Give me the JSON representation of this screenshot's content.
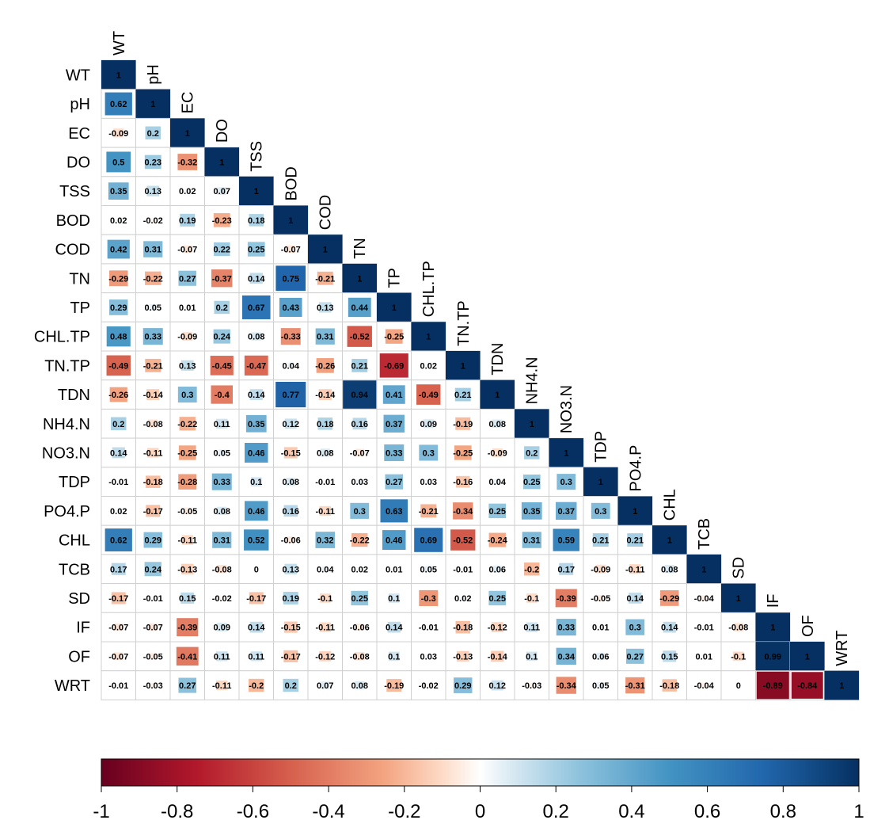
{
  "chart_data": {
    "type": "heatmap",
    "subtype": "lower-triangular correlation matrix",
    "title": "",
    "variables": [
      "WT",
      "pH",
      "EC",
      "DO",
      "TSS",
      "BOD",
      "COD",
      "TN",
      "TP",
      "CHL.TP",
      "TN.TP",
      "TDN",
      "NH4.N",
      "NO3.N",
      "TDP",
      "PO4.P",
      "CHL",
      "TCB",
      "SD",
      "IF",
      "OF",
      "WRT"
    ],
    "rows": [
      {
        "label": "WT",
        "values": [
          1
        ]
      },
      {
        "label": "pH",
        "values": [
          0.62,
          1
        ]
      },
      {
        "label": "EC",
        "values": [
          -0.09,
          0.2,
          1
        ]
      },
      {
        "label": "DO",
        "values": [
          0.5,
          0.23,
          -0.32,
          1
        ]
      },
      {
        "label": "TSS",
        "values": [
          0.35,
          0.13,
          0.02,
          0.07,
          1
        ]
      },
      {
        "label": "BOD",
        "values": [
          0.02,
          -0.02,
          0.19,
          -0.23,
          0.18,
          1
        ]
      },
      {
        "label": "COD",
        "values": [
          0.42,
          0.31,
          -0.07,
          0.22,
          0.25,
          -0.07,
          1
        ]
      },
      {
        "label": "TN",
        "values": [
          -0.29,
          -0.22,
          0.27,
          -0.37,
          0.14,
          0.75,
          -0.21,
          1
        ]
      },
      {
        "label": "TP",
        "values": [
          0.29,
          0.05,
          0.01,
          0.2,
          0.67,
          0.43,
          0.13,
          0.44,
          1
        ]
      },
      {
        "label": "CHL.TP",
        "values": [
          0.48,
          0.33,
          -0.09,
          0.24,
          0.08,
          -0.33,
          0.31,
          -0.52,
          -0.25,
          1
        ]
      },
      {
        "label": "TN.TP",
        "values": [
          -0.49,
          -0.21,
          0.13,
          -0.45,
          -0.47,
          0.04,
          -0.26,
          0.21,
          -0.69,
          0.02,
          1
        ]
      },
      {
        "label": "TDN",
        "values": [
          -0.26,
          -0.14,
          0.3,
          -0.4,
          0.14,
          0.77,
          -0.14,
          0.94,
          0.41,
          -0.49,
          0.21,
          1
        ]
      },
      {
        "label": "NH4.N",
        "values": [
          0.2,
          -0.08,
          -0.22,
          0.11,
          0.35,
          0.12,
          0.18,
          0.16,
          0.37,
          0.09,
          -0.19,
          0.08,
          1
        ]
      },
      {
        "label": "NO3.N",
        "values": [
          0.14,
          -0.11,
          -0.25,
          0.05,
          0.46,
          -0.15,
          0.08,
          -0.07,
          0.33,
          0.3,
          -0.25,
          -0.09,
          0.2,
          1
        ]
      },
      {
        "label": "TDP",
        "values": [
          -0.01,
          -0.18,
          -0.28,
          0.33,
          0.1,
          0.08,
          -0.01,
          0.03,
          0.27,
          0.03,
          -0.16,
          0.04,
          0.25,
          0.3,
          1
        ]
      },
      {
        "label": "PO4.P",
        "values": [
          0.02,
          -0.17,
          -0.05,
          0.08,
          0.46,
          0.16,
          -0.11,
          0.3,
          0.63,
          -0.21,
          -0.34,
          0.25,
          0.35,
          0.37,
          0.3,
          1
        ]
      },
      {
        "label": "CHL",
        "values": [
          0.62,
          0.29,
          -0.11,
          0.31,
          0.52,
          -0.06,
          0.32,
          -0.22,
          0.46,
          0.69,
          -0.52,
          -0.24,
          0.31,
          0.59,
          0.21,
          0.21,
          1
        ]
      },
      {
        "label": "TCB",
        "values": [
          0.17,
          0.24,
          -0.13,
          -0.08,
          0,
          0.13,
          0.04,
          0.02,
          0.01,
          0.05,
          -0.01,
          0.06,
          -0.2,
          0.17,
          -0.09,
          -0.11,
          0.08,
          1
        ]
      },
      {
        "label": "SD",
        "values": [
          -0.17,
          -0.01,
          0.15,
          -0.02,
          -0.17,
          0.19,
          -0.1,
          0.25,
          0.1,
          -0.3,
          0.02,
          0.25,
          -0.1,
          -0.39,
          -0.05,
          0.14,
          -0.29,
          -0.04,
          1
        ]
      },
      {
        "label": "IF",
        "values": [
          -0.07,
          -0.07,
          -0.39,
          0.09,
          0.14,
          -0.15,
          -0.11,
          -0.06,
          0.14,
          -0.01,
          -0.18,
          -0.12,
          0.11,
          0.33,
          0.01,
          0.3,
          0.14,
          -0.01,
          -0.08,
          1
        ]
      },
      {
        "label": "OF",
        "values": [
          -0.07,
          -0.05,
          -0.41,
          0.11,
          0.11,
          -0.17,
          -0.12,
          -0.08,
          0.1,
          0.03,
          -0.13,
          -0.14,
          0.1,
          0.34,
          0.06,
          0.27,
          0.15,
          0.01,
          -0.1,
          0.99,
          1
        ]
      },
      {
        "label": "WRT",
        "values": [
          -0.01,
          -0.03,
          0.27,
          -0.11,
          -0.2,
          0.2,
          0.07,
          0.08,
          -0.19,
          -0.02,
          0.29,
          0.12,
          -0.03,
          -0.34,
          0.05,
          -0.31,
          -0.18,
          -0.04,
          0,
          -0.89,
          -0.84,
          1
        ]
      }
    ],
    "color_scale": {
      "range": [
        -1,
        1
      ],
      "stops": [
        {
          "value": -1,
          "color": "#67001f"
        },
        {
          "value": -0.75,
          "color": "#b2182b"
        },
        {
          "value": -0.5,
          "color": "#d6604d"
        },
        {
          "value": -0.25,
          "color": "#f4a582"
        },
        {
          "value": -0.1,
          "color": "#fddbc7"
        },
        {
          "value": 0,
          "color": "#ffffff"
        },
        {
          "value": 0.1,
          "color": "#d1e5f0"
        },
        {
          "value": 0.25,
          "color": "#92c5de"
        },
        {
          "value": 0.5,
          "color": "#4393c3"
        },
        {
          "value": 0.75,
          "color": "#2166ac"
        },
        {
          "value": 1,
          "color": "#053061"
        }
      ]
    },
    "colorbar": {
      "tick_labels": [
        "-1",
        "-0.8",
        "-0.6",
        "-0.4",
        "-0.2",
        "0",
        "0.2",
        "0.4",
        "0.6",
        "0.8",
        "1"
      ],
      "tick_values": [
        -1,
        -0.8,
        -0.6,
        -0.4,
        -0.2,
        0,
        0.2,
        0.4,
        0.6,
        0.8,
        1
      ],
      "placement": "bottom"
    },
    "cell_marker": "square sized by absolute correlation",
    "grid": true
  }
}
